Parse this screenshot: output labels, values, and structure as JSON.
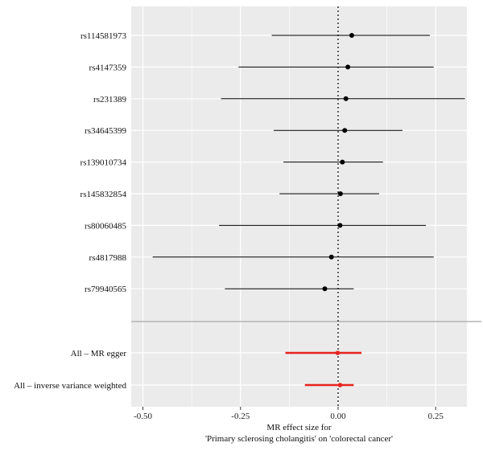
{
  "chart_data": {
    "type": "forest",
    "title": "",
    "xlabel_lines": [
      "MR effect size for",
      "'Primary sclerosing cholangitis' on 'colorectal cancer'"
    ],
    "ylabel": "",
    "xlim": [
      -0.53,
      0.33
    ],
    "x_ticks": [
      -0.5,
      -0.25,
      0,
      0.25
    ],
    "x_tick_labels": [
      "-0.50",
      "-0.25",
      "0.00",
      "0.25"
    ],
    "reference_line": 0,
    "grid": true,
    "background": "#ebebeb",
    "rows": [
      {
        "label": "rs114581973",
        "estimate": 0.035,
        "lower": -0.17,
        "upper": 0.235,
        "group": "snp"
      },
      {
        "label": "rs4147359",
        "estimate": 0.025,
        "lower": -0.255,
        "upper": 0.245,
        "group": "snp"
      },
      {
        "label": "rs231389",
        "estimate": 0.02,
        "lower": -0.3,
        "upper": 0.325,
        "group": "snp"
      },
      {
        "label": "rs34645399",
        "estimate": 0.017,
        "lower": -0.165,
        "upper": 0.165,
        "group": "snp"
      },
      {
        "label": "rs139010734",
        "estimate": 0.011,
        "lower": -0.14,
        "upper": 0.115,
        "group": "snp"
      },
      {
        "label": "rs145832854",
        "estimate": 0.006,
        "lower": -0.15,
        "upper": 0.105,
        "group": "snp"
      },
      {
        "label": "rs80060485",
        "estimate": 0.005,
        "lower": -0.305,
        "upper": 0.225,
        "group": "snp"
      },
      {
        "label": "rs4817988",
        "estimate": -0.017,
        "lower": -0.475,
        "upper": 0.245,
        "group": "snp"
      },
      {
        "label": "rs79940565",
        "estimate": -0.034,
        "lower": -0.29,
        "upper": 0.04,
        "group": "snp"
      },
      {
        "label": "All – MR egger",
        "estimate": -0.001,
        "lower": -0.135,
        "upper": 0.06,
        "group": "summary"
      },
      {
        "label": "All – inverse variance weighted",
        "estimate": 0.005,
        "lower": -0.085,
        "upper": 0.04,
        "group": "summary"
      }
    ],
    "colors": {
      "snp": "#000000",
      "summary": "#e8231f",
      "separator": "#b3b3b3",
      "grid": "#ffffff"
    }
  }
}
